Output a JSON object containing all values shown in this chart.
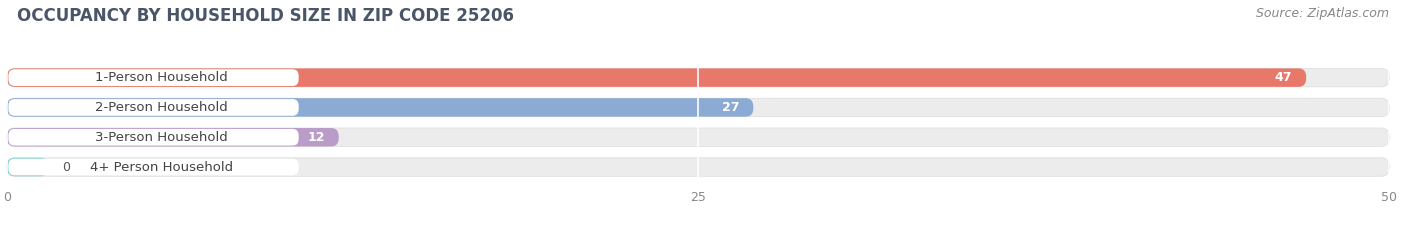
{
  "title": "OCCUPANCY BY HOUSEHOLD SIZE IN ZIP CODE 25206",
  "source": "Source: ZipAtlas.com",
  "categories": [
    "1-Person Household",
    "2-Person Household",
    "3-Person Household",
    "4+ Person Household"
  ],
  "values": [
    47,
    27,
    12,
    0
  ],
  "bar_colors": [
    "#E8796A",
    "#8BAAD4",
    "#B99CC8",
    "#7DCECE"
  ],
  "bar_bg_color": "#ECECEC",
  "xlim": [
    0,
    50
  ],
  "xticks": [
    0,
    25,
    50
  ],
  "title_fontsize": 12,
  "source_fontsize": 9,
  "label_fontsize": 9.5,
  "value_fontsize": 9,
  "bar_height": 0.62,
  "background_color": "#FFFFFF",
  "label_pill_color": "#FFFFFF",
  "label_text_color": "#444444"
}
